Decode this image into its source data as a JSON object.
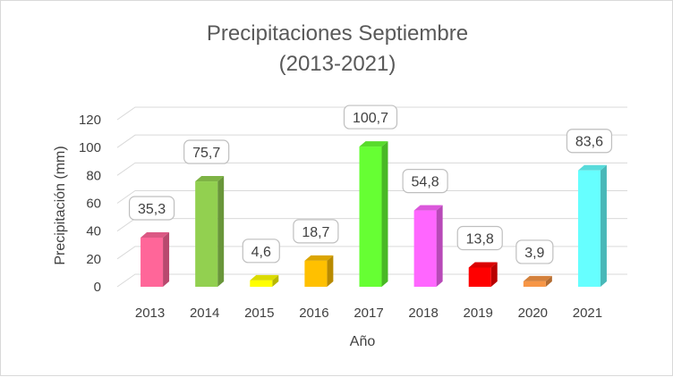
{
  "chart_data": {
    "type": "bar",
    "title": [
      "Precipitaciones Septiembre",
      "(2013-2021)"
    ],
    "xlabel": "Año",
    "ylabel": "Precipitación (mm)",
    "ylim": [
      0,
      120
    ],
    "yticks": [
      0,
      20,
      40,
      60,
      80,
      100,
      120
    ],
    "grid": true,
    "categories": [
      "2013",
      "2014",
      "2015",
      "2016",
      "2017",
      "2018",
      "2019",
      "2020",
      "2021"
    ],
    "values": [
      35.3,
      75.7,
      4.6,
      18.7,
      100.7,
      54.8,
      13.8,
      3.9,
      83.6
    ],
    "value_labels": [
      "35,3",
      "75,7",
      "4,6",
      "18,7",
      "100,7",
      "54,8",
      "13,8",
      "3,9",
      "83,6"
    ],
    "bar_colors": [
      "#ff6699",
      "#92d050",
      "#ffff00",
      "#ffc000",
      "#66ff33",
      "#ff66ff",
      "#ff0000",
      "#f79646",
      "#66ffff"
    ]
  }
}
